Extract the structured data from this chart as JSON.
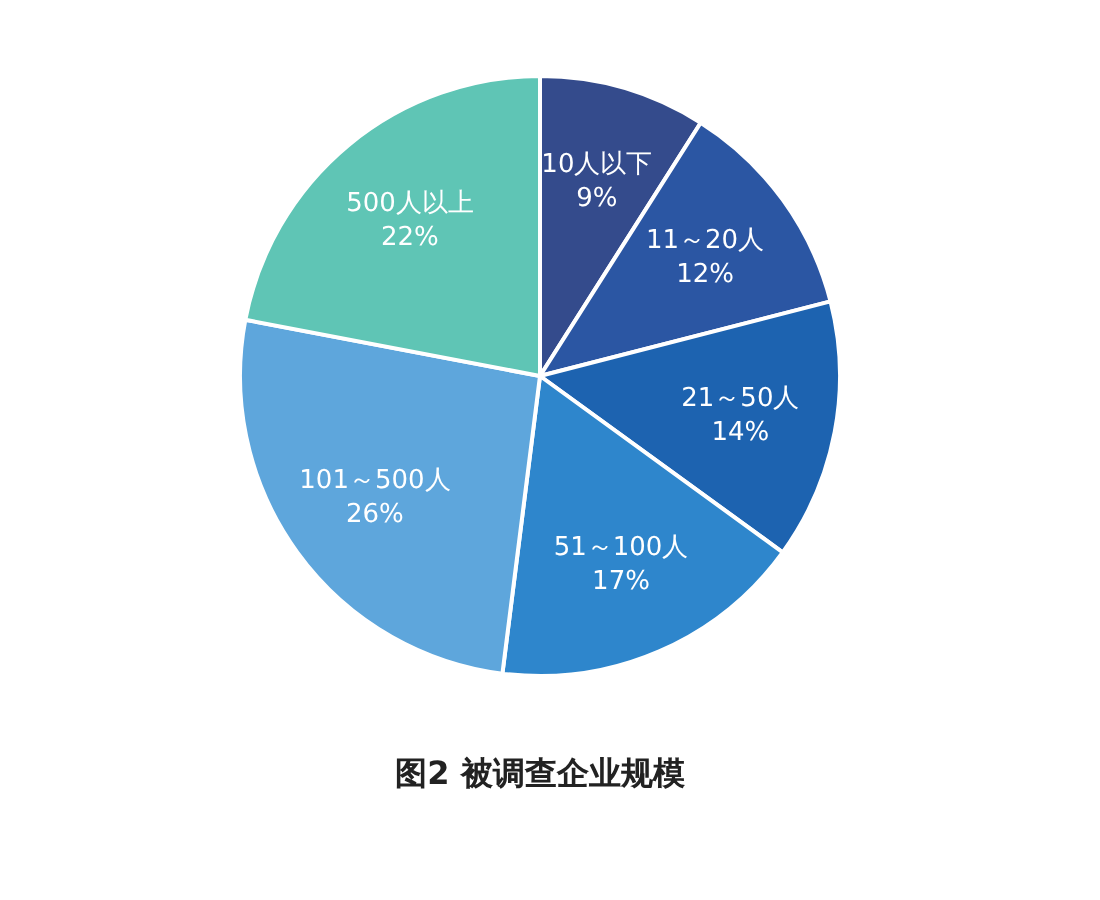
{
  "chart_data": {
    "type": "pie",
    "title": "图2 被调查企业规模",
    "categories": [
      "10人以下",
      "11～20人",
      "21～50人",
      "51～100人",
      "101～500人",
      "500人以上"
    ],
    "values": [
      9,
      12,
      14,
      17,
      26,
      22
    ],
    "value_labels": [
      "9%",
      "12%",
      "14%",
      "17%",
      "26%",
      "22%"
    ],
    "colors": [
      "#344b8c",
      "#2b56a3",
      "#1d63b0",
      "#2e86cc",
      "#5ea6dc",
      "#5fc5b5"
    ]
  }
}
